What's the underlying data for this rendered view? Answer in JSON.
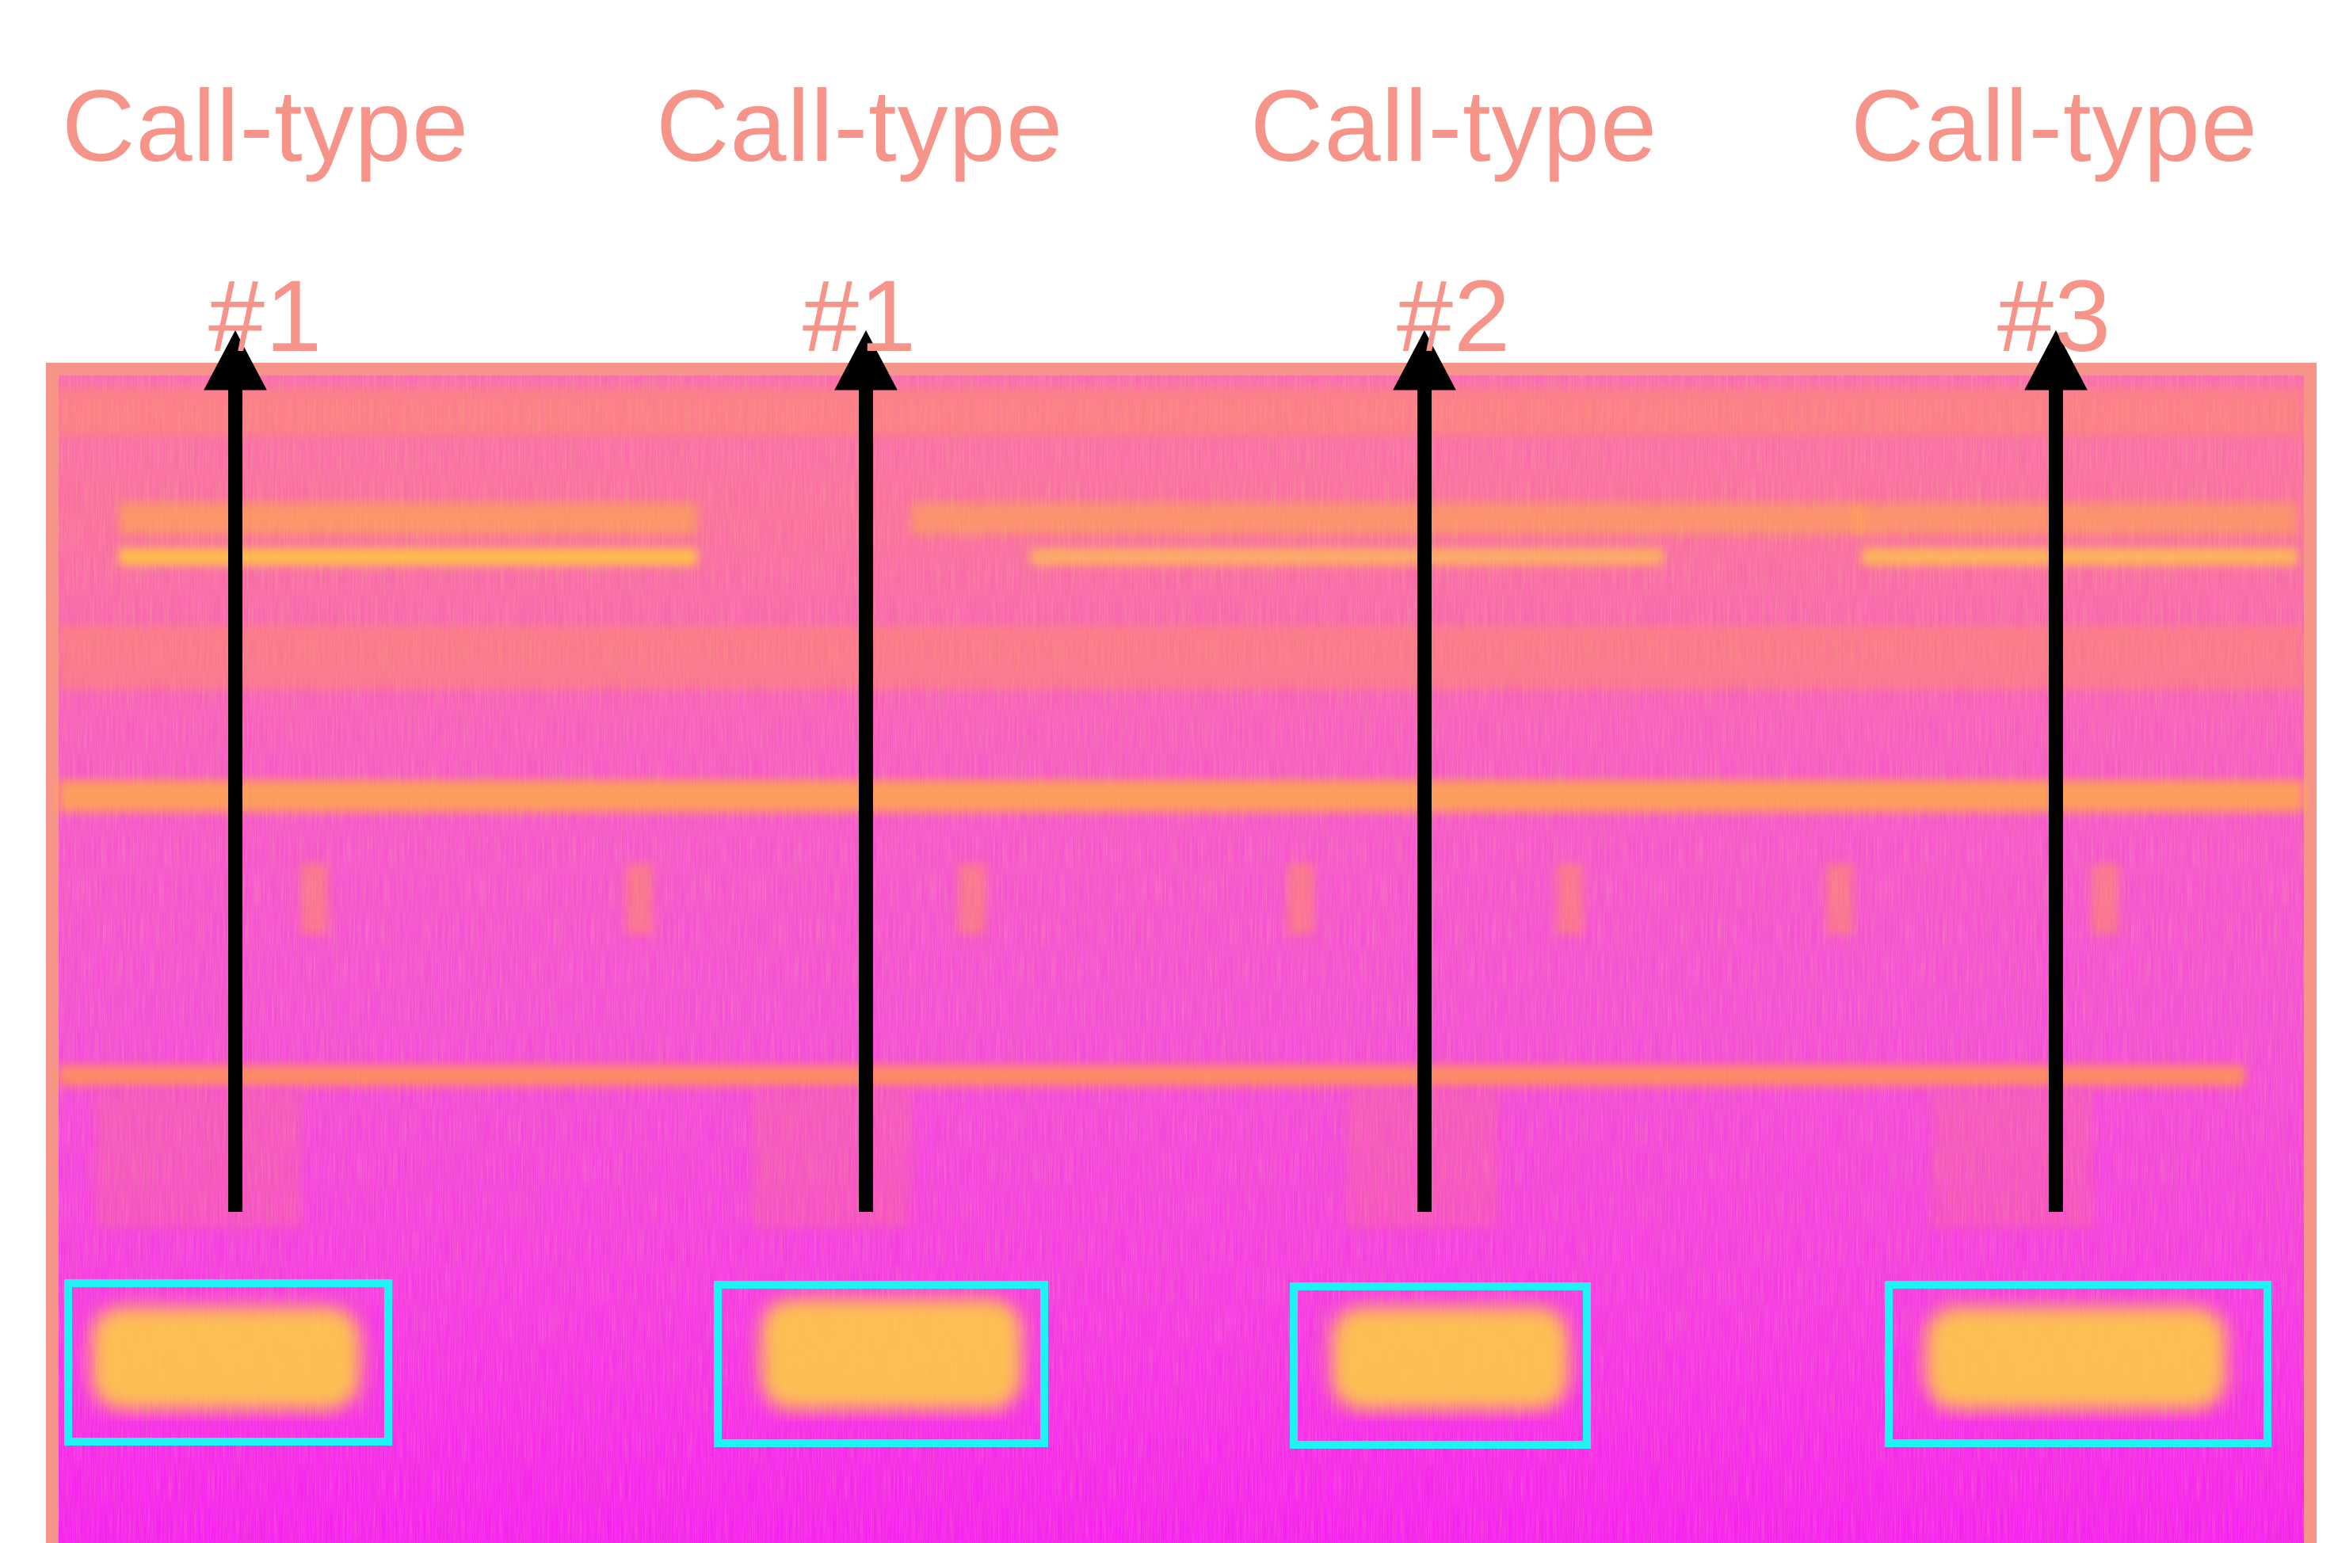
{
  "labels": [
    {
      "line1": "Call-type",
      "line2": "#1"
    },
    {
      "line1": "Call-type",
      "line2": "#1"
    },
    {
      "line1": "Call-type",
      "line2": "#2"
    },
    {
      "line1": "Call-type",
      "line2": "#3"
    }
  ],
  "colors": {
    "label": "#f7948a",
    "border": "#f7948a",
    "box": "#1ff2f2",
    "arrow": "#000000",
    "background_low": "#ff22ee",
    "background_high": "#ff9a3c",
    "highlight": "#ffe23a"
  }
}
